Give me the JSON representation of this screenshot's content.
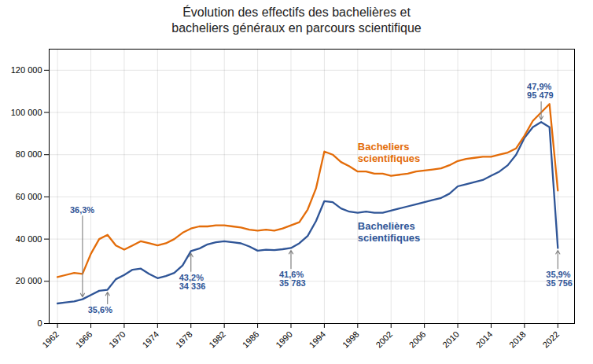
{
  "chart_data": {
    "type": "line",
    "title": "Évolution des effectifs des bachelières et\nbacheliers généraux en parcours scientifique",
    "x": [
      1962,
      1963,
      1964,
      1965,
      1966,
      1967,
      1968,
      1969,
      1970,
      1971,
      1972,
      1973,
      1974,
      1975,
      1976,
      1977,
      1978,
      1979,
      1980,
      1981,
      1982,
      1983,
      1984,
      1985,
      1986,
      1987,
      1988,
      1989,
      1990,
      1991,
      1992,
      1993,
      1994,
      1995,
      1996,
      1997,
      1998,
      1999,
      2000,
      2001,
      2002,
      2003,
      2004,
      2005,
      2006,
      2007,
      2008,
      2009,
      2010,
      2011,
      2012,
      2013,
      2014,
      2015,
      2016,
      2017,
      2018,
      2019,
      2020,
      2021,
      2022
    ],
    "xlim": [
      1961,
      2024
    ],
    "xticks": [
      1962,
      1966,
      1970,
      1974,
      1978,
      1982,
      1986,
      1990,
      1994,
      1998,
      2002,
      2006,
      2010,
      2014,
      2018,
      2022
    ],
    "ylim": [
      0,
      130000
    ],
    "yticks": [
      0,
      {
        "value": 20000,
        "label": "20 000"
      },
      {
        "value": 40000,
        "label": "40 000"
      },
      {
        "value": 60000,
        "label": "60 000"
      },
      {
        "value": 80000,
        "label": "80 000"
      },
      {
        "value": 100000,
        "label": "100 000"
      },
      {
        "value": 120000,
        "label": "120 000"
      }
    ],
    "grid": true,
    "series": [
      {
        "name": "Bachelières\nscientifiques",
        "color": "#2F5597",
        "values": [
          9500,
          10000,
          10500,
          11500,
          13500,
          15500,
          16000,
          21000,
          23000,
          25500,
          26000,
          23500,
          21500,
          22500,
          24000,
          27500,
          34336,
          35500,
          37500,
          38500,
          39000,
          38500,
          38000,
          36500,
          34500,
          35000,
          34800,
          35200,
          35783,
          38000,
          41500,
          48500,
          58000,
          57500,
          54500,
          53000,
          52500,
          53000,
          52500,
          52500,
          53500,
          54500,
          55500,
          56500,
          57500,
          58500,
          59500,
          61500,
          65000,
          66000,
          67000,
          68000,
          70000,
          72000,
          75000,
          80000,
          88000,
          93000,
          95479,
          93000,
          35756
        ]
      },
      {
        "name": "Bacheliers\nscientifiques",
        "color": "#E36C09",
        "values": [
          22000,
          23000,
          24000,
          23500,
          33000,
          40000,
          42000,
          37000,
          35000,
          37000,
          39000,
          38000,
          37000,
          38000,
          40000,
          43000,
          45000,
          46000,
          46000,
          46500,
          46500,
          46000,
          45500,
          44500,
          44000,
          44500,
          44000,
          45000,
          46500,
          48000,
          54000,
          64000,
          81500,
          80000,
          76500,
          74500,
          72000,
          72000,
          71000,
          71000,
          70000,
          70500,
          71000,
          72000,
          72500,
          73000,
          73500,
          75000,
          77000,
          78000,
          78500,
          79000,
          79000,
          80000,
          81000,
          83000,
          89000,
          96000,
          100000,
          104000,
          63000
        ]
      }
    ],
    "annotations": [
      {
        "text": "36,3%",
        "x": 1965,
        "y": 11500
      },
      {
        "text": "35,6%",
        "x": 1968,
        "y": 16000
      },
      {
        "text": "43,2%\n34 336",
        "x": 1978,
        "y": 34336
      },
      {
        "text": "41,6%\n35 783",
        "x": 1990,
        "y": 35783
      },
      {
        "text": "47,9%\n95 479",
        "x": 2020,
        "y": 95479
      },
      {
        "text": "35,9%\n35 756",
        "x": 2022,
        "y": 35756
      }
    ]
  }
}
